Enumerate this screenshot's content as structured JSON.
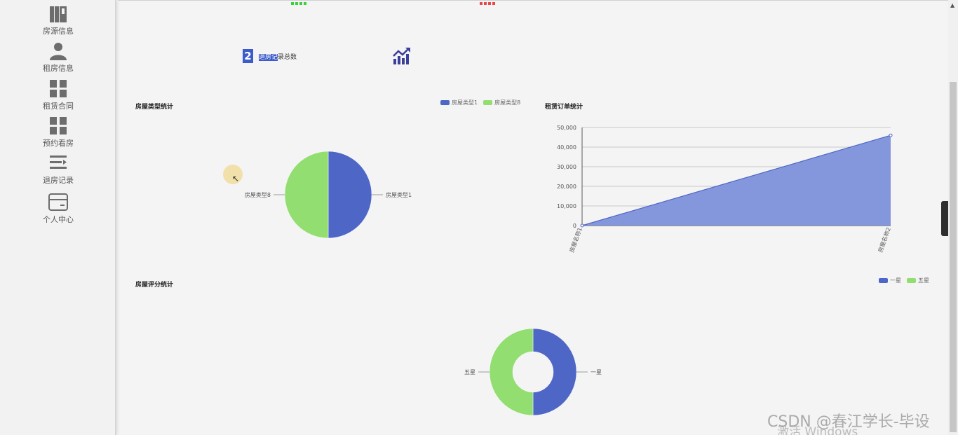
{
  "sidebar": {
    "items": [
      {
        "label": "房源信息",
        "icon": "building-icon"
      },
      {
        "label": "租房信息",
        "icon": "user-icon"
      },
      {
        "label": "租赁合同",
        "icon": "grid-icon"
      },
      {
        "label": "预约看房",
        "icon": "grid-icon"
      },
      {
        "label": "退房记录",
        "icon": "list-icon"
      },
      {
        "label": "个人中心",
        "icon": "card-icon"
      }
    ]
  },
  "stat": {
    "value": "2",
    "label_highlight": "退房记",
    "label_rest": "录总数",
    "icon": "trend-chart-icon"
  },
  "colors": {
    "blue": "#4e67c6",
    "green": "#93de71",
    "area_fill": "#8497dc",
    "dark_blue_icon": "#3b3f9c"
  },
  "chart_data": [
    {
      "type": "pie",
      "title": "房屋类型统计",
      "legend_position": "top-right",
      "series": [
        {
          "name": "房屋类型1",
          "value": 1
        },
        {
          "name": "房屋类型8",
          "value": 1
        }
      ]
    },
    {
      "type": "area",
      "title": "租赁订单统计",
      "categories": [
        "房屋名称1",
        "房屋名称2"
      ],
      "values": [
        0,
        46000
      ],
      "ylim": [
        0,
        50000
      ],
      "yticks": [
        "0",
        "10,000",
        "20,000",
        "30,000",
        "40,000",
        "50,000"
      ],
      "grid": true
    },
    {
      "type": "pie",
      "subtype": "donut",
      "title": "房屋评分统计",
      "legend_position": "top-right",
      "series": [
        {
          "name": "一星",
          "value": 1
        },
        {
          "name": "五星",
          "value": 1
        }
      ]
    }
  ],
  "watermark": {
    "csdn": "CSDN @春江学长-毕设",
    "activate": "激活 Windows"
  }
}
